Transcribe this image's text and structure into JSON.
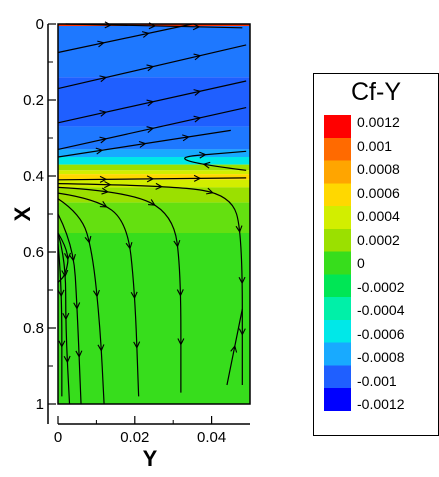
{
  "chart_data": {
    "type": "heatmap",
    "title": "",
    "xlabel": "Y",
    "ylabel": "X",
    "xlim": [
      0,
      0.05
    ],
    "ylim": [
      0,
      1
    ],
    "y_axis_inverted": true,
    "x_ticks": [
      "0",
      "0.02",
      "0.04"
    ],
    "x_tick_values": [
      0,
      0.02,
      0.04
    ],
    "y_ticks": [
      "0",
      "0.2",
      "0.4",
      "0.6",
      "0.8",
      "1"
    ],
    "y_tick_values": [
      0,
      0.2,
      0.4,
      0.6,
      0.8,
      1
    ],
    "legend_position": "right",
    "colorbar": {
      "title": "Cf-Y",
      "levels": [
        {
          "label": "0.0012",
          "color": "#ff0000"
        },
        {
          "label": "0.001",
          "color": "#ff6a00"
        },
        {
          "label": "0.0008",
          "color": "#ffa500"
        },
        {
          "label": "0.0006",
          "color": "#ffd800"
        },
        {
          "label": "0.0004",
          "color": "#d2ee00"
        },
        {
          "label": "0.0002",
          "color": "#9be000"
        },
        {
          "label": "0",
          "color": "#37dd1c"
        },
        {
          "label": "-0.0002",
          "color": "#00e655"
        },
        {
          "label": "-0.0004",
          "color": "#00f0a8"
        },
        {
          "label": "-0.0006",
          "color": "#00e8e8"
        },
        {
          "label": "-0.0008",
          "color": "#18aaff"
        },
        {
          "label": "-0.001",
          "color": "#1f5fff"
        },
        {
          "label": "-0.0012",
          "color": "#0000ff"
        }
      ]
    },
    "bands": [
      {
        "x_from": 0.0,
        "x_to": 0.004,
        "color": "#18aaff"
      },
      {
        "x_from": 0.004,
        "x_to": 0.14,
        "color": "#1e78ff"
      },
      {
        "x_from": 0.14,
        "x_to": 0.27,
        "color": "#1f5fff"
      },
      {
        "x_from": 0.27,
        "x_to": 0.33,
        "color": "#1e78ff"
      },
      {
        "x_from": 0.33,
        "x_to": 0.35,
        "color": "#18aaff"
      },
      {
        "x_from": 0.35,
        "x_to": 0.37,
        "color": "#00e8e8"
      },
      {
        "x_from": 0.37,
        "x_to": 0.385,
        "color": "#9be000"
      },
      {
        "x_from": 0.385,
        "x_to": 0.395,
        "color": "#d2ee00"
      },
      {
        "x_from": 0.395,
        "x_to": 0.41,
        "color": "#ffd800"
      },
      {
        "x_from": 0.41,
        "x_to": 0.43,
        "color": "#d2ee00"
      },
      {
        "x_from": 0.43,
        "x_to": 0.47,
        "color": "#9be000"
      },
      {
        "x_from": 0.47,
        "x_to": 0.55,
        "color": "#64e010"
      },
      {
        "x_from": 0.55,
        "x_to": 1.0,
        "color": "#37dd1c"
      }
    ],
    "streamline_paths": [
      [
        [
          0.002,
          0.0
        ],
        [
          0.048,
          0.01
        ]
      ],
      [
        [
          0.0,
          0.075
        ],
        [
          0.035,
          0.0
        ]
      ],
      [
        [
          0.0,
          0.17
        ],
        [
          0.049,
          0.055
        ]
      ],
      [
        [
          0.0,
          0.26
        ],
        [
          0.049,
          0.15
        ]
      ],
      [
        [
          0.0,
          0.33
        ],
        [
          0.049,
          0.22
        ]
      ],
      [
        [
          0.0,
          0.35
        ],
        [
          0.045,
          0.28
        ]
      ],
      [
        [
          0.049,
          0.385
        ],
        [
          0.025,
          0.355
        ],
        [
          0.049,
          0.335
        ]
      ],
      [
        [
          0.0,
          0.41
        ],
        [
          0.049,
          0.405
        ]
      ],
      [
        [
          0.0,
          0.42
        ],
        [
          0.03,
          0.425
        ],
        [
          0.045,
          0.45
        ],
        [
          0.048,
          0.55
        ],
        [
          0.048,
          0.95
        ]
      ],
      [
        [
          0.0,
          0.43
        ],
        [
          0.018,
          0.44
        ],
        [
          0.03,
          0.5
        ],
        [
          0.032,
          0.65
        ],
        [
          0.032,
          0.97
        ]
      ],
      [
        [
          0.0,
          0.445
        ],
        [
          0.01,
          0.46
        ],
        [
          0.018,
          0.52
        ],
        [
          0.02,
          0.7
        ],
        [
          0.021,
          0.98
        ]
      ],
      [
        [
          0.0,
          0.46
        ],
        [
          0.006,
          0.5
        ],
        [
          0.009,
          0.6
        ],
        [
          0.011,
          0.8
        ],
        [
          0.012,
          1.0
        ]
      ],
      [
        [
          0.0,
          0.5
        ],
        [
          0.004,
          0.58
        ],
        [
          0.005,
          0.75
        ],
        [
          0.006,
          1.0
        ]
      ],
      [
        [
          0.0,
          0.55
        ],
        [
          0.002,
          0.62
        ],
        [
          0.002,
          0.8
        ],
        [
          0.003,
          1.0
        ]
      ],
      [
        [
          0.0,
          0.58
        ],
        [
          0.001,
          0.68
        ],
        [
          0.001,
          0.98
        ]
      ],
      [
        [
          0.0,
          0.55
        ],
        [
          0.003,
          0.6
        ],
        [
          0.002,
          0.66
        ],
        [
          0.0,
          0.68
        ]
      ],
      [
        [
          0.044,
          0.95
        ],
        [
          0.046,
          0.85
        ],
        [
          0.048,
          0.75
        ]
      ]
    ]
  }
}
